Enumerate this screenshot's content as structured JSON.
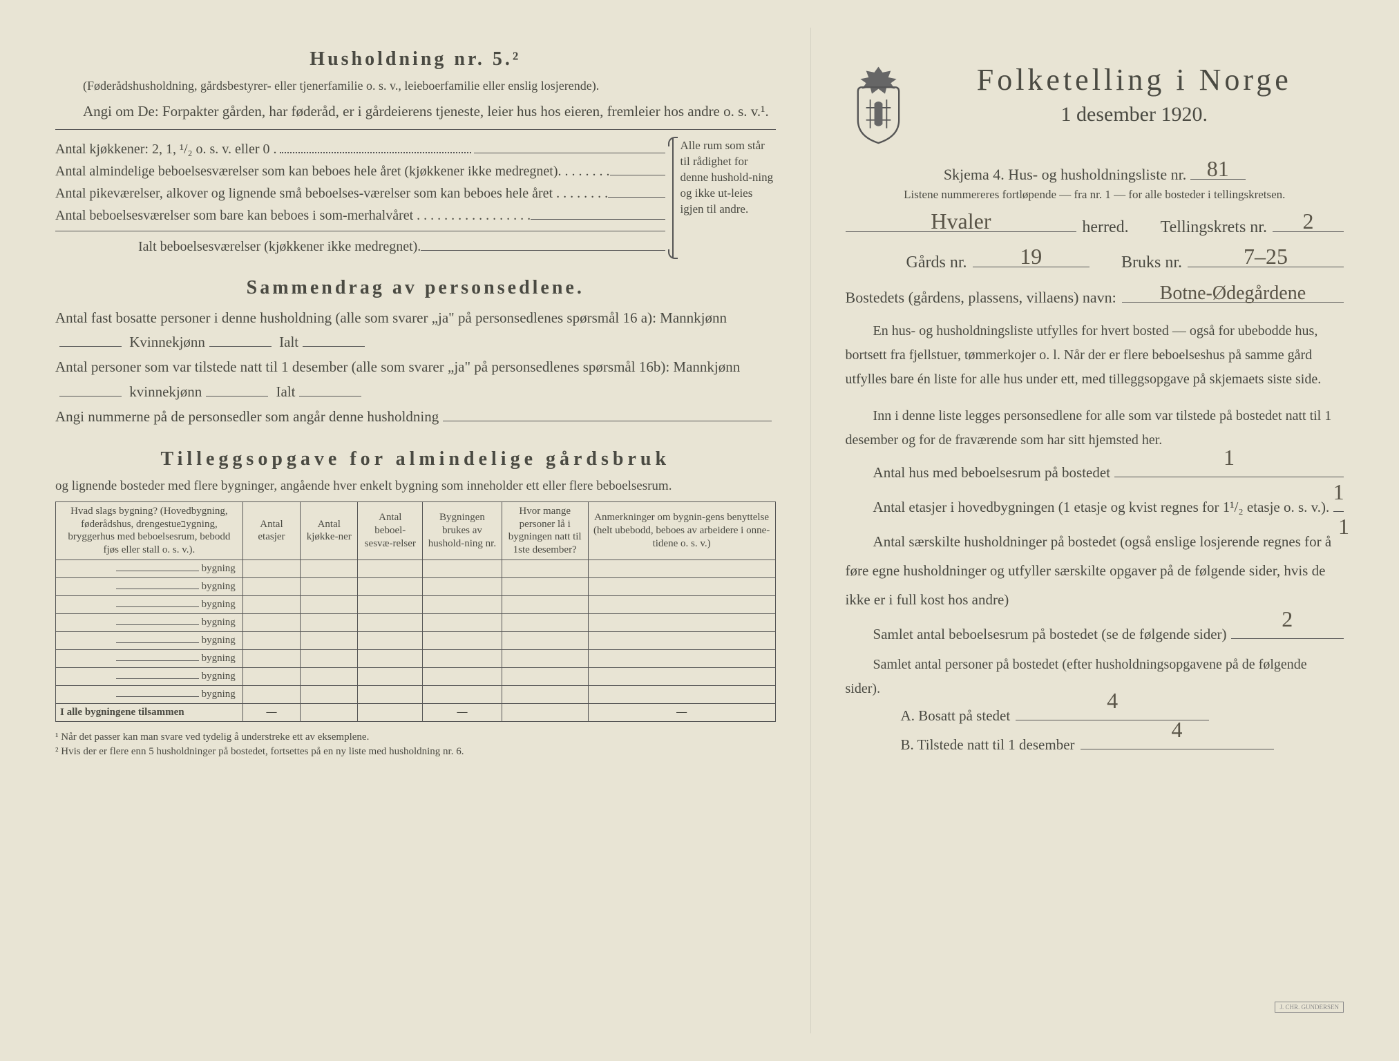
{
  "left": {
    "heading": "Husholdning nr. 5.²",
    "note": "(Føderådshusholdning, gårdsbestyrer- eller tjenerfamilie o. s. v., leieboerfamilie eller enslig losjerende).",
    "angi": "Angi om De: Forpakter gården, har føderåd, er i gårdeierens tjeneste, leier hus hos eieren, fremleier hos andre o. s. v.¹.",
    "rows": {
      "kjokken": "Antal kjøkkener: 2, 1, ¹/₂ o. s. v. eller 0 .",
      "alm": "Antal almindelige beboelsesværelser som kan beboes hele året (kjøkkener ikke medregnet). . . . . . . .",
      "pike": "Antal pikeværelser, alkover og lignende små beboelses-værelser som kan beboes hele året . . . . . . . .",
      "sommer": "Antal beboelsesværelser som bare kan beboes i som-merhalvåret . . . . . . . . . . . . . . . . .",
      "ialt": "Ialt beboelsesværelser (kjøkkener ikke medregnet)."
    },
    "sidecol": "Alle rum som står til rådighet for denne hushold-ning og ikke ut-leies igjen til andre.",
    "sammen_title": "Sammendrag av personsedlene.",
    "sammen_p1a": "Antal fast bosatte personer i denne husholdning (alle som svarer „ja\" på personsedlenes spørsmål 16 a): Mannkjønn",
    "sammen_p1b": " Kvinnekjønn",
    "sammen_p1c": " Ialt",
    "sammen_p2a": "Antal personer som var tilstede natt til 1 desember (alle som svarer „ja\" på personsedlenes spørsmål 16b): Mannkjønn",
    "sammen_p2b": " kvinnekjønn",
    "sammen_p2c": " Ialt",
    "sammen_p3": "Angi nummerne på de personsedler som angår denne husholdning",
    "tillegg_title": "Tilleggsopgave for almindelige gårdsbruk",
    "tillegg_sub": "og lignende bosteder med flere bygninger, angående hver enkelt bygning som inneholder ett eller flere beboelsesrum.",
    "table": {
      "headers": [
        "Hvad slags bygning?\n(Hovedbygning, føderådshus, drengestueבygning, bryggerhus med beboelsesrum, bebodd fjøs eller stall o. s. v.).",
        "Antal etasjer",
        "Antal kjøkke-ner",
        "Antal beboel-sesvæ-relser",
        "Bygningen brukes av hushold-ning nr.",
        "Hvor mange personer lå i bygningen natt til 1ste desember?",
        "Anmerkninger om bygnin-gens benyttelse (helt ubebodd, beboes av arbeidere i onne-tidene o. s. v.)"
      ],
      "rowlabel": "bygning",
      "total": "I alle bygningene tilsammen"
    },
    "foot1": "¹ Når det passer kan man svare ved tydelig å understreke ett av eksemplene.",
    "foot2": "² Hvis der er flere enn 5 husholdninger på bostedet, fortsettes på en ny liste med husholdning nr. 6."
  },
  "right": {
    "title": "Folketelling i Norge",
    "subtitle": "1 desember 1920.",
    "schema": "Skjema 4.  Hus- og husholdningsliste nr.",
    "schema_val": "81",
    "listnote": "Listene nummereres fortløpende — fra nr. 1 — for alle bosteder i tellingskretsen.",
    "herred_val": "Hvaler",
    "herred_lbl": "herred.",
    "krets_lbl": "Tellingskrets nr.",
    "krets_val": "2",
    "gards_lbl": "Gårds nr.",
    "gards_val": "19",
    "bruks_lbl": "Bruks nr.",
    "bruks_val": "7–25",
    "bosted_lbl": "Bostedets (gårdens, plassens, villaens) navn:",
    "bosted_val": "Botne-Ødegårdene",
    "p1": "En hus- og husholdningsliste utfylles for hvert bosted — også for ubebodde hus, bortsett fra fjellstuer, tømmerkojer o. l. Når der er flere beboelseshus på samme gård utfylles bare én liste for alle hus under ett, med tilleggsopgave på skjemaets siste side.",
    "p2": "Inn i denne liste legges personsedlene for alle som var tilstede på bostedet natt til 1 desember og for de fraværende som har sitt hjemsted her.",
    "q1": "Antal hus med beboelsesrum på bostedet",
    "q1_val": "1",
    "q2": "Antal etasjer i hovedbygningen (1 etasje og kvist regnes for 1¹/₂ etasje o. s. v.).",
    "q2_val": "1",
    "q3": "Antal særskilte husholdninger på bostedet (også enslige losjerende regnes for å føre egne husholdninger og utfyller særskilte opgaver på de følgende sider, hvis de ikke er i full kost hos andre)",
    "q3_val": "1",
    "q4": "Samlet antal beboelsesrum på bostedet (se de følgende sider)",
    "q4_val": "2",
    "q5": "Samlet antal personer på bostedet (efter husholdningsopgavene på de følgende sider).",
    "qa_lbl": "A.  Bosatt på stedet",
    "qa_val": "4",
    "qb_lbl": "B.  Tilstede natt til 1 desember",
    "qb_val": "4",
    "stamp": "J. CHR. GUNDERSEN"
  }
}
